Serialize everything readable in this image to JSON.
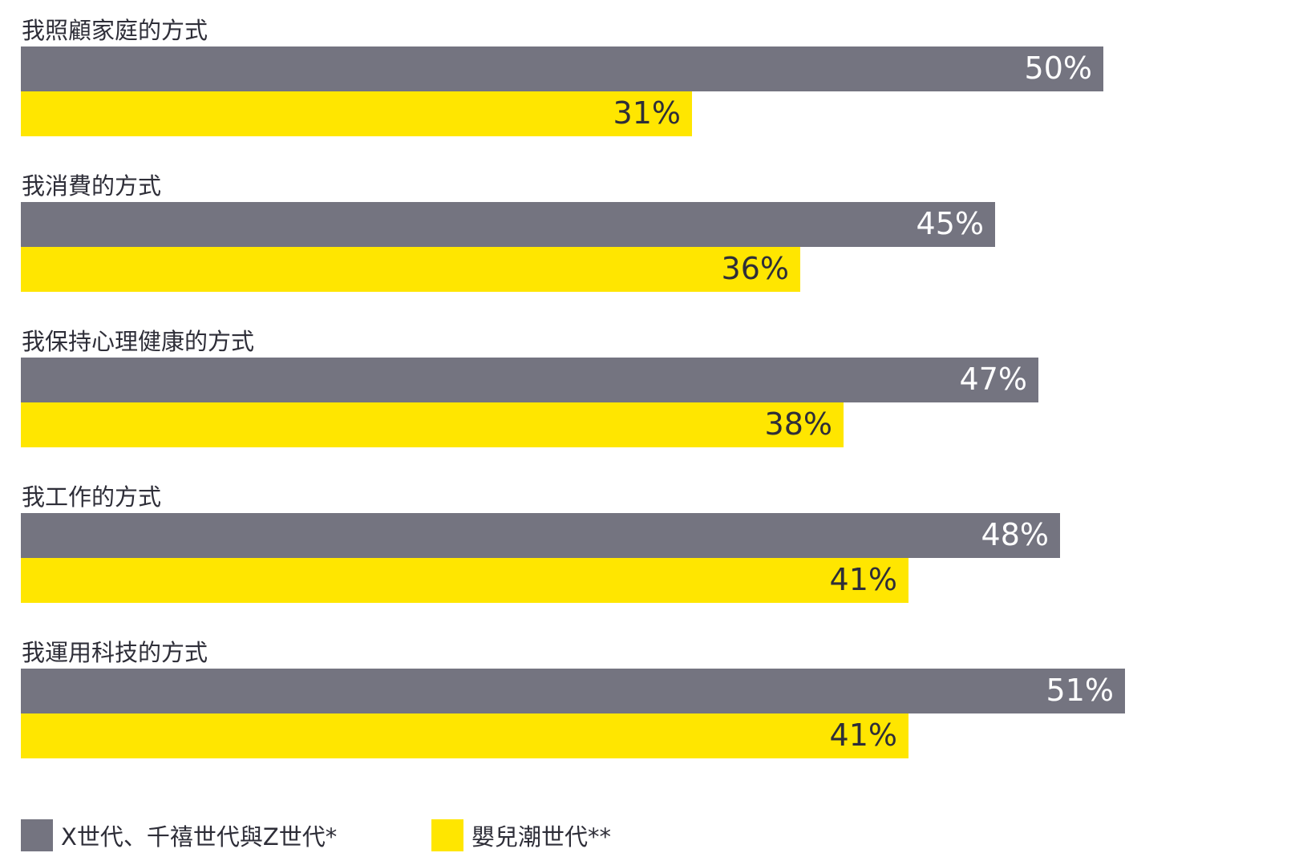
{
  "colors": {
    "series1": "#747480",
    "series2": "#ffe600",
    "label_on_series1": "#ffffff",
    "label_on_series2": "#2e2e38"
  },
  "chart_data": {
    "type": "bar",
    "orientation": "horizontal",
    "categories": [
      "我照顧家庭的方式",
      "我消費的方式",
      "我保持心理健康的方式",
      "我工作的方式",
      "我運用科技的方式"
    ],
    "series": [
      {
        "name": "X世代、千禧世代與Z世代*",
        "values": [
          50,
          45,
          47,
          48,
          51
        ],
        "labels": [
          "50%",
          "45%",
          "47%",
          "48%",
          "51%"
        ]
      },
      {
        "name": "嬰兒潮世代**",
        "values": [
          31,
          36,
          38,
          41,
          41
        ],
        "labels": [
          "31%",
          "36%",
          "38%",
          "41%",
          "41%"
        ]
      }
    ],
    "unit": "%",
    "grid": false,
    "legend": "bottom-left"
  }
}
